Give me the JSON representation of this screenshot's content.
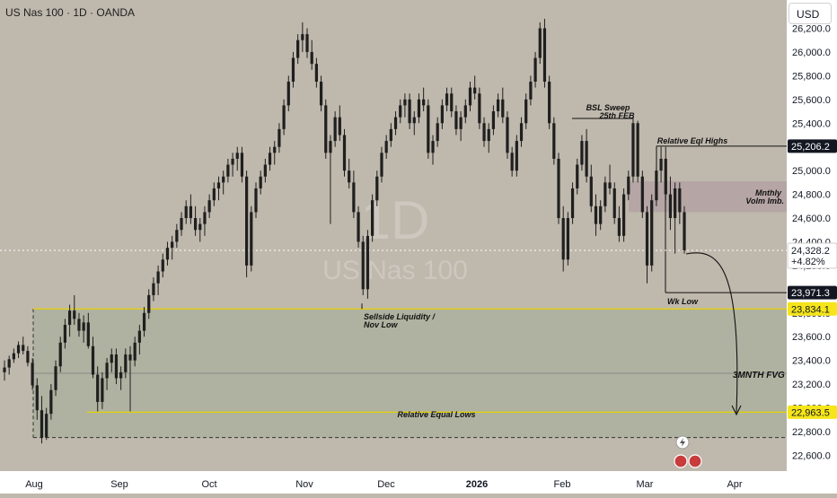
{
  "header": {
    "title": "US Nas 100 · 1D · OANDA",
    "currency": "USD"
  },
  "watermark": {
    "interval": "1D",
    "symbol": "US Nas 100"
  },
  "colors": {
    "background": "#bfb8ad",
    "candle": "#1f1f1f",
    "fvg_zone": "#a9b09c",
    "imbalance_zone": "#b3a2a3",
    "sellside_line": "#e6d200",
    "equal_lows_line": "#e6d200",
    "level_line": "#111111",
    "price_line": "#ffffff"
  },
  "chart_data": {
    "type": "candlestick",
    "x_tick_labels": [
      "Aug",
      "Sep",
      "Oct",
      "Nov",
      "Dec",
      "2026",
      "Feb",
      "Mar",
      "Apr"
    ],
    "y_tick_labels": [
      "26,200.0",
      "26,000.0",
      "25,800.0",
      "25,600.0",
      "25,400.0",
      "25,200.0",
      "25,000.0",
      "24,800.0",
      "24,600.0",
      "24,400.0",
      "24,200.0",
      "23,800.0",
      "23,600.0",
      "23,400.0",
      "23,200.0",
      "23,000.0",
      "22,800.0",
      "22,600.0"
    ],
    "ylim": [
      22540,
      26300
    ],
    "price_labels": [
      {
        "value": 25206.2,
        "text": "25,206.2",
        "style": "dark"
      },
      {
        "value": 24328.2,
        "text": "24,328.2",
        "subtext": "+4.82%",
        "style": "light"
      },
      {
        "value": 23971.3,
        "text": "23,971.3",
        "style": "dark"
      },
      {
        "value": 23834.1,
        "text": "23,834.1",
        "style": "yellow"
      },
      {
        "value": 22963.5,
        "text": "22,963.5",
        "style": "yellow"
      }
    ],
    "annotations": [
      {
        "text": "BSL Sweep",
        "style": "italic-bold"
      },
      {
        "text": "25th FEB",
        "style": "italic-bold"
      },
      {
        "text": "Relative Eql Highs",
        "style": "italic-bold"
      },
      {
        "text": "Mnthly",
        "style": "italic-bold"
      },
      {
        "text": "Volm Imb.",
        "style": "italic-bold"
      },
      {
        "text": "Wk Low",
        "style": "italic-bold"
      },
      {
        "text": "Sellside Liquidity /",
        "style": "italic-bold"
      },
      {
        "text": "Nov Low",
        "style": "italic-bold"
      },
      {
        "text": "3MNTH  FVG",
        "style": "italic-bold"
      },
      {
        "text": "Relative Equal Lows",
        "style": "italic-bold"
      }
    ],
    "zones": [
      {
        "name": "3MNTH FVG",
        "y_range": [
          22750,
          23834.1
        ]
      },
      {
        "name": "Mnthly Volm Imb.",
        "y_range": [
          24650,
          24910
        ]
      }
    ],
    "levels": [
      {
        "name": "BSL Sweep",
        "value": 25440
      },
      {
        "name": "Relative Eql Highs",
        "value": 25206.2
      },
      {
        "name": "Wk Low",
        "value": 23971.3
      },
      {
        "name": "Sellside Liquidity",
        "value": 23834.1
      },
      {
        "name": "Relative Equal Lows",
        "value": 22963.5
      },
      {
        "name": "3MNTH FVG midline",
        "value": 23292
      },
      {
        "name": "3MNTH FVG bottom",
        "value": 22750
      },
      {
        "name": "last price",
        "value": 24328.2
      }
    ],
    "candles": [
      [
        23300,
        23400,
        23230,
        23340
      ],
      [
        23340,
        23440,
        23280,
        23410
      ],
      [
        23410,
        23500,
        23380,
        23460
      ],
      [
        23460,
        23560,
        23420,
        23530
      ],
      [
        23530,
        23600,
        23450,
        23480
      ],
      [
        23480,
        23520,
        23350,
        23380
      ],
      [
        23380,
        23420,
        23150,
        23190
      ],
      [
        23190,
        23250,
        22900,
        22980
      ],
      [
        22980,
        23100,
        22700,
        22750
      ],
      [
        22750,
        23000,
        22730,
        22950
      ],
      [
        22950,
        23200,
        22900,
        23150
      ],
      [
        23150,
        23400,
        23100,
        23350
      ],
      [
        23350,
        23600,
        23300,
        23550
      ],
      [
        23550,
        23750,
        23500,
        23700
      ],
      [
        23700,
        23870,
        23600,
        23820
      ],
      [
        23820,
        23950,
        23700,
        23750
      ],
      [
        23750,
        23800,
        23600,
        23650
      ],
      [
        23650,
        23780,
        23550,
        23720
      ],
      [
        23720,
        23800,
        23500,
        23520
      ],
      [
        23520,
        23600,
        23250,
        23280
      ],
      [
        23280,
        23350,
        22970,
        23050
      ],
      [
        23050,
        23300,
        22990,
        23250
      ],
      [
        23250,
        23420,
        23150,
        23380
      ],
      [
        23380,
        23500,
        23300,
        23450
      ],
      [
        23450,
        23500,
        23200,
        23250
      ],
      [
        23250,
        23350,
        23150,
        23300
      ],
      [
        23300,
        23500,
        23250,
        23450
      ],
      [
        23450,
        23520,
        22970,
        23400
      ],
      [
        23400,
        23600,
        23350,
        23550
      ],
      [
        23550,
        23700,
        23450,
        23650
      ],
      [
        23650,
        23850,
        23600,
        23800
      ],
      [
        23800,
        24000,
        23750,
        23950
      ],
      [
        23950,
        24100,
        23900,
        24050
      ],
      [
        24050,
        24200,
        23950,
        24150
      ],
      [
        24150,
        24300,
        24100,
        24250
      ],
      [
        24250,
        24400,
        24200,
        24350
      ],
      [
        24350,
        24450,
        24250,
        24400
      ],
      [
        24400,
        24550,
        24350,
        24500
      ],
      [
        24500,
        24650,
        24450,
        24600
      ],
      [
        24600,
        24750,
        24550,
        24700
      ],
      [
        24700,
        24800,
        24550,
        24600
      ],
      [
        24600,
        24700,
        24450,
        24500
      ],
      [
        24500,
        24600,
        24400,
        24550
      ],
      [
        24550,
        24700,
        24450,
        24650
      ],
      [
        24650,
        24800,
        24600,
        24750
      ],
      [
        24750,
        24900,
        24700,
        24850
      ],
      [
        24850,
        24950,
        24750,
        24900
      ],
      [
        24900,
        25000,
        24800,
        24950
      ],
      [
        24950,
        25100,
        24900,
        25050
      ],
      [
        25050,
        25150,
        24950,
        25100
      ],
      [
        25100,
        25200,
        25000,
        25150
      ],
      [
        25150,
        25200,
        24900,
        24950
      ],
      [
        24950,
        25000,
        24100,
        24200
      ],
      [
        24200,
        24700,
        24150,
        24650
      ],
      [
        24650,
        24900,
        24600,
        24850
      ],
      [
        24850,
        25000,
        24800,
        24950
      ],
      [
        24950,
        25100,
        24900,
        25050
      ],
      [
        25050,
        25200,
        25000,
        25150
      ],
      [
        25150,
        25250,
        25050,
        25200
      ],
      [
        25200,
        25400,
        25150,
        25350
      ],
      [
        25350,
        25600,
        25300,
        25550
      ],
      [
        25550,
        25800,
        25500,
        25750
      ],
      [
        25750,
        26000,
        25700,
        25950
      ],
      [
        25950,
        26150,
        25900,
        26100
      ],
      [
        26100,
        26250,
        26000,
        26150
      ],
      [
        26150,
        26200,
        25950,
        26000
      ],
      [
        26000,
        26100,
        25850,
        25900
      ],
      [
        25900,
        25950,
        25700,
        25750
      ],
      [
        25750,
        25800,
        25500,
        25550
      ],
      [
        25550,
        25600,
        25100,
        25150
      ],
      [
        25150,
        25300,
        24550,
        25250
      ],
      [
        25250,
        25500,
        25200,
        25450
      ],
      [
        25450,
        25550,
        25250,
        25300
      ],
      [
        25300,
        25350,
        24950,
        25000
      ],
      [
        25000,
        25100,
        24850,
        24900
      ],
      [
        24900,
        25000,
        24600,
        24650
      ],
      [
        24650,
        24700,
        24350,
        24400
      ],
      [
        24400,
        24450,
        23950,
        24000
      ],
      [
        24000,
        24500,
        23920,
        24450
      ],
      [
        24450,
        24800,
        24400,
        24750
      ],
      [
        24750,
        25000,
        24700,
        24950
      ],
      [
        24950,
        25200,
        24900,
        25150
      ],
      [
        25150,
        25300,
        25100,
        25250
      ],
      [
        25250,
        25400,
        25200,
        25350
      ],
      [
        25350,
        25500,
        25300,
        25450
      ],
      [
        25450,
        25600,
        25400,
        25550
      ],
      [
        25550,
        25650,
        25450,
        25600
      ],
      [
        25600,
        25650,
        25350,
        25400
      ],
      [
        25400,
        25500,
        25300,
        25450
      ],
      [
        25450,
        25650,
        25400,
        25600
      ],
      [
        25600,
        25700,
        25500,
        25550
      ],
      [
        25550,
        25600,
        25100,
        25150
      ],
      [
        25150,
        25300,
        25050,
        25250
      ],
      [
        25250,
        25450,
        25200,
        25400
      ],
      [
        25400,
        25600,
        25350,
        25550
      ],
      [
        25550,
        25700,
        25500,
        25650
      ],
      [
        25650,
        25700,
        25450,
        25500
      ],
      [
        25500,
        25550,
        25300,
        25350
      ],
      [
        25350,
        25500,
        25250,
        25450
      ],
      [
        25450,
        25600,
        25400,
        25550
      ],
      [
        25550,
        25750,
        25500,
        25700
      ],
      [
        25700,
        25800,
        25600,
        25650
      ],
      [
        25650,
        25700,
        25350,
        25400
      ],
      [
        25400,
        25450,
        25200,
        25250
      ],
      [
        25250,
        25400,
        25150,
        25350
      ],
      [
        25350,
        25550,
        25300,
        25500
      ],
      [
        25500,
        25650,
        25450,
        25600
      ],
      [
        25600,
        25700,
        25400,
        25450
      ],
      [
        25450,
        25500,
        25100,
        25150
      ],
      [
        25150,
        25200,
        24950,
        25000
      ],
      [
        25000,
        25300,
        24950,
        25250
      ],
      [
        25250,
        25450,
        25200,
        25400
      ],
      [
        25400,
        25650,
        25350,
        25600
      ],
      [
        25600,
        25800,
        25550,
        25750
      ],
      [
        25750,
        26000,
        25700,
        25950
      ],
      [
        25950,
        26250,
        25900,
        26200
      ],
      [
        26200,
        26280,
        25700,
        25750
      ],
      [
        25750,
        25800,
        25350,
        25400
      ],
      [
        25400,
        25450,
        25050,
        25100
      ],
      [
        25100,
        25150,
        24550,
        24600
      ],
      [
        24600,
        24700,
        24150,
        24250
      ],
      [
        24250,
        24650,
        24200,
        24600
      ],
      [
        24600,
        24900,
        24550,
        24850
      ],
      [
        24850,
        25100,
        24800,
        25050
      ],
      [
        25050,
        25300,
        25000,
        25250
      ],
      [
        25250,
        25350,
        24900,
        24950
      ],
      [
        24950,
        25050,
        24650,
        24700
      ],
      [
        24700,
        24800,
        24450,
        24550
      ],
      [
        24550,
        24750,
        24500,
        24700
      ],
      [
        24700,
        24950,
        24650,
        24900
      ],
      [
        24900,
        25050,
        24800,
        24850
      ],
      [
        24850,
        24900,
        24550,
        24600
      ],
      [
        24600,
        24700,
        24400,
        24450
      ],
      [
        24450,
        24850,
        24400,
        24800
      ],
      [
        24800,
        25000,
        24750,
        24950
      ],
      [
        24950,
        25450,
        24900,
        25400
      ],
      [
        25400,
        25420,
        24900,
        24950
      ],
      [
        24950,
        25000,
        24600,
        24650
      ],
      [
        24650,
        24700,
        24050,
        24200
      ],
      [
        24200,
        24800,
        24150,
        24750
      ],
      [
        24750,
        25050,
        24700,
        25000
      ],
      [
        25000,
        25200,
        24900,
        25100
      ],
      [
        25100,
        25200,
        24750,
        24800
      ],
      [
        24800,
        24950,
        24500,
        24600
      ],
      [
        24600,
        24900,
        24300,
        24850
      ],
      [
        24850,
        24900,
        24550,
        24650
      ],
      [
        24650,
        24700,
        24300,
        24328
      ]
    ]
  }
}
